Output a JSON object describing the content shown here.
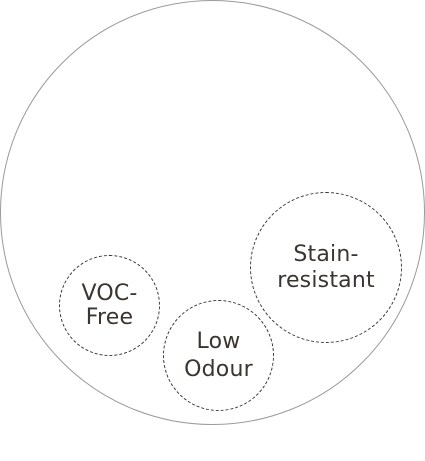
{
  "diagram": {
    "bubbles": {
      "voc_free": {
        "label": "VOC-\nFree"
      },
      "low_odour": {
        "label": "Low\nOdour"
      },
      "stain_resistant": {
        "label": "Stain-\nresistant"
      }
    }
  },
  "colors": {
    "outline": "#9a9a9a",
    "text_and_dashes": "#3b3531",
    "background": "#ffffff"
  }
}
